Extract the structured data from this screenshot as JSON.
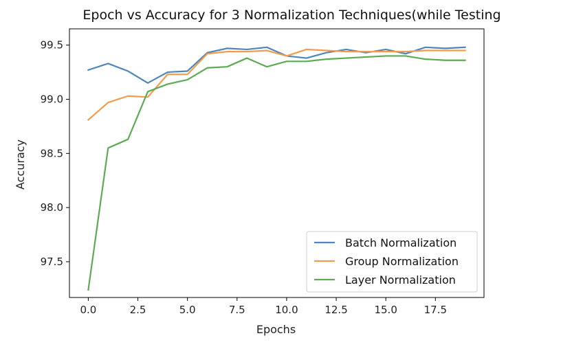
{
  "chart_data": {
    "type": "line",
    "title": "Epoch vs Accuracy for 3 Normalization Techniques(while Testing",
    "xlabel": "Epochs",
    "ylabel": "Accuracy",
    "xlim": [
      -0.95,
      19.95
    ],
    "ylim": [
      97.17,
      99.65
    ],
    "xticks": [
      0.0,
      2.5,
      5.0,
      7.5,
      10.0,
      12.5,
      15.0,
      17.5
    ],
    "xtick_labels": [
      "0.0",
      "2.5",
      "5.0",
      "7.5",
      "10.0",
      "12.5",
      "15.0",
      "17.5"
    ],
    "yticks": [
      97.5,
      98.0,
      98.5,
      99.0,
      99.5
    ],
    "ytick_labels": [
      "97.5",
      "98.0",
      "98.5",
      "99.0",
      "99.5"
    ],
    "grid": false,
    "legend_position": "lower-right",
    "x": [
      0,
      1,
      2,
      3,
      4,
      5,
      6,
      7,
      8,
      9,
      10,
      11,
      12,
      13,
      14,
      15,
      16,
      17,
      18,
      19
    ],
    "series": [
      {
        "name": "Batch Normalization",
        "color": "#4e85ba",
        "values": [
          99.27,
          99.33,
          99.26,
          99.15,
          99.25,
          99.26,
          99.43,
          99.47,
          99.46,
          99.48,
          99.4,
          99.38,
          99.43,
          99.46,
          99.43,
          99.46,
          99.42,
          99.48,
          99.47,
          99.48
        ]
      },
      {
        "name": "Group Normalization",
        "color": "#f19c4d",
        "values": [
          98.81,
          98.97,
          99.03,
          99.02,
          99.23,
          99.23,
          99.42,
          99.44,
          99.44,
          99.45,
          99.4,
          99.46,
          99.45,
          99.44,
          99.44,
          99.44,
          99.44,
          99.45,
          99.45,
          99.45
        ]
      },
      {
        "name": "Layer Normalization",
        "color": "#5cab53",
        "values": [
          97.24,
          98.55,
          98.63,
          99.07,
          99.14,
          99.18,
          99.29,
          99.3,
          99.38,
          99.3,
          99.35,
          99.35,
          99.37,
          99.38,
          99.39,
          99.4,
          99.4,
          99.37,
          99.36,
          99.36
        ]
      }
    ]
  }
}
